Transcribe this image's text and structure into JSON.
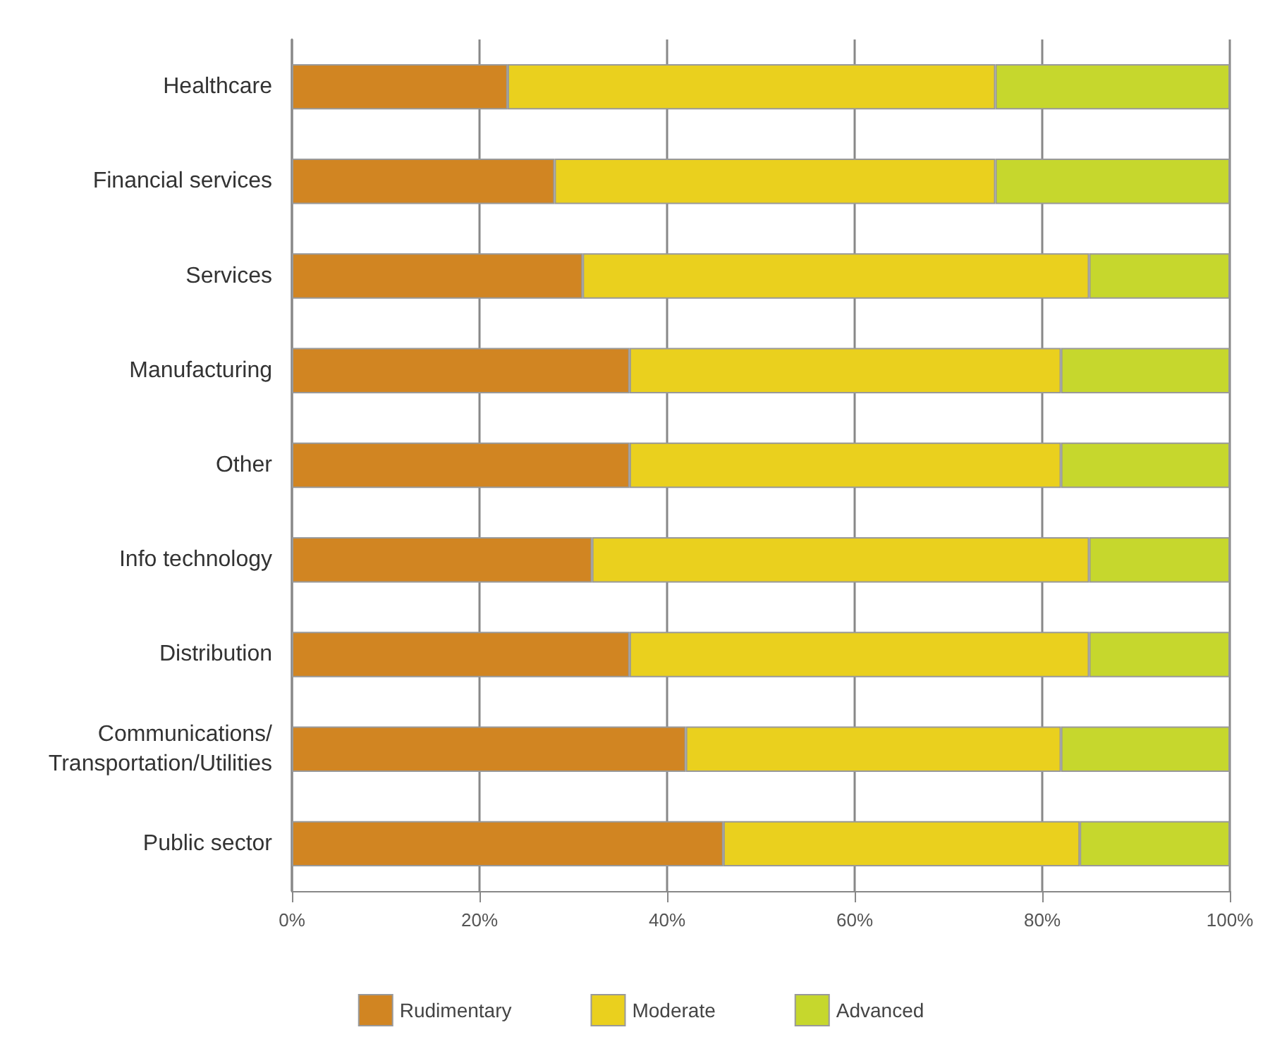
{
  "chart_data": {
    "type": "bar",
    "orientation": "horizontal",
    "stacked": true,
    "categories": [
      "Healthcare",
      "Financial services",
      "Services",
      "Manufacturing",
      "Other",
      "Info technology",
      "Distribution",
      "Communications/\nTransportation/Utilities",
      "Public sector"
    ],
    "series": [
      {
        "name": "Rudimentary",
        "color": "#d18522",
        "values": [
          23,
          28,
          31,
          36,
          36,
          32,
          36,
          42,
          46
        ]
      },
      {
        "name": "Moderate",
        "color": "#ead01e",
        "values": [
          52,
          47,
          54,
          46,
          46,
          53,
          49,
          40,
          38
        ]
      },
      {
        "name": "Advanced",
        "color": "#c6d72d",
        "values": [
          25,
          25,
          15,
          18,
          18,
          15,
          15,
          18,
          16
        ]
      }
    ],
    "xlim": [
      0,
      100
    ],
    "xticks": [
      {
        "value": 0,
        "label": "0%"
      },
      {
        "value": 20,
        "label": "20%"
      },
      {
        "value": 40,
        "label": "40%"
      },
      {
        "value": 60,
        "label": "60%"
      },
      {
        "value": 80,
        "label": "80%"
      },
      {
        "value": 100,
        "label": "100%"
      }
    ],
    "grid": "x",
    "legend": "bottom"
  }
}
